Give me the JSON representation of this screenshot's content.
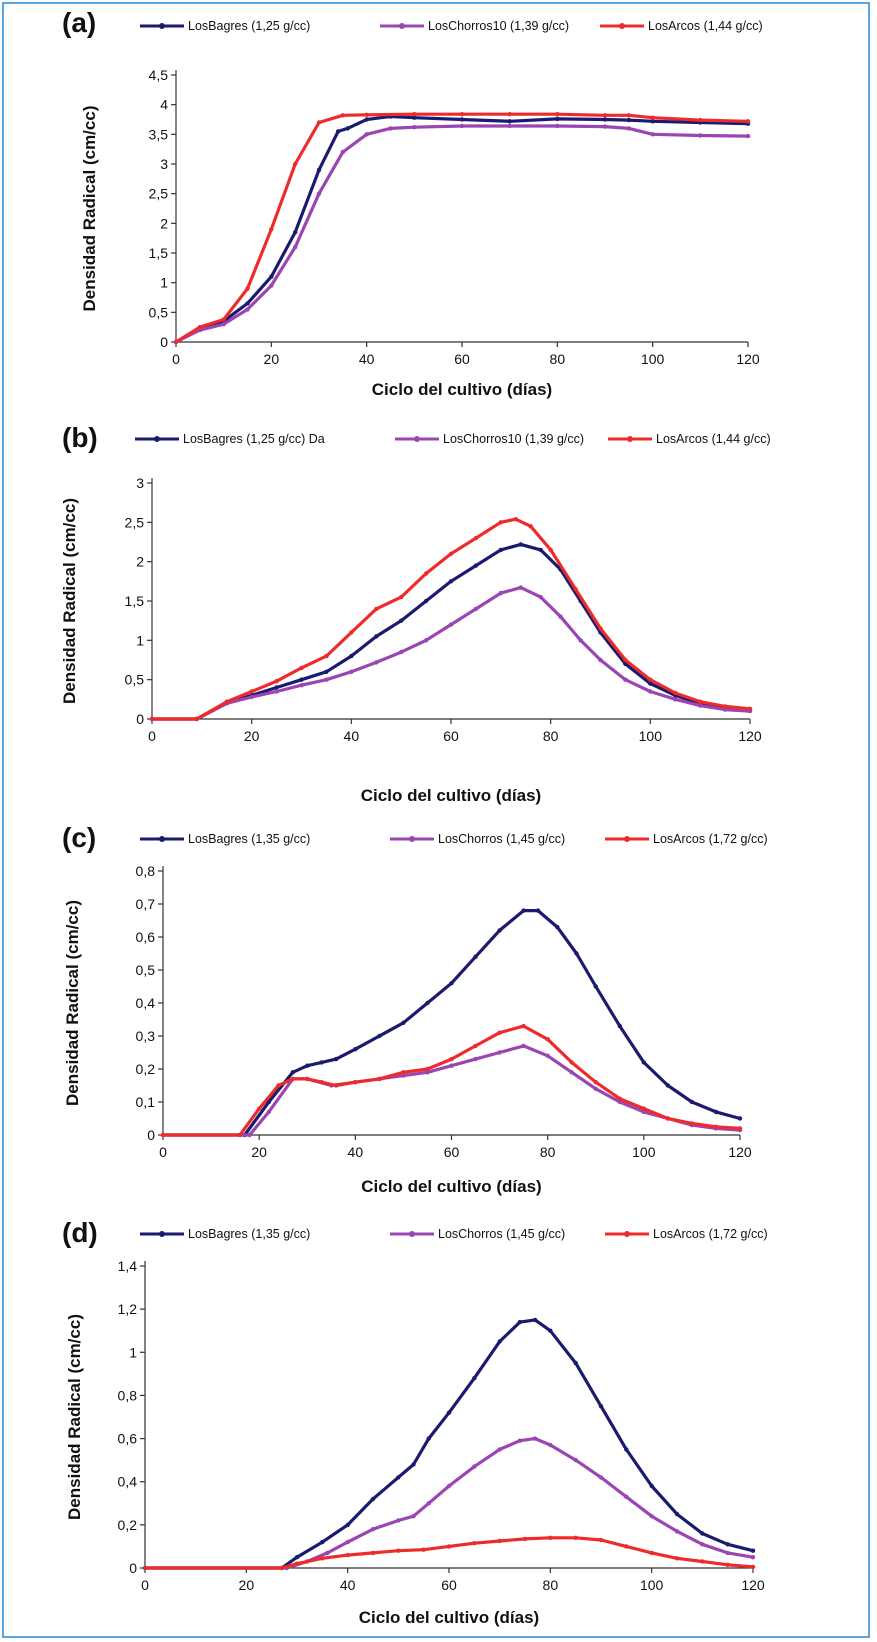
{
  "colors": {
    "navy": "#1a1a6e",
    "purple": "#9b45b5",
    "red": "#ee2b2b",
    "frame": "#5aa6e0"
  },
  "chart_data": [
    {
      "panel": "(a)",
      "type": "line",
      "xlabel": "Ciclo del cultivo (días)",
      "ylabel": "Densidad Radical (cm/cc)",
      "xlim": [
        0,
        120
      ],
      "ylim": [
        0,
        4.5
      ],
      "xticks": [
        "0",
        "20",
        "40",
        "60",
        "80",
        "100",
        "120"
      ],
      "yticks": [
        "0",
        "0,5",
        "1",
        "1,5",
        "2",
        "2,5",
        "3",
        "3,5",
        "4",
        "4,5"
      ],
      "series": [
        {
          "name": "LosBagres (1,25 g/cc)",
          "color": "#1a1a6e",
          "x": [
            0,
            5,
            10,
            15,
            20,
            25,
            30,
            34,
            36,
            40,
            45,
            50,
            60,
            70,
            80,
            90,
            95,
            100,
            110,
            120
          ],
          "y": [
            0,
            0.22,
            0.35,
            0.65,
            1.1,
            1.85,
            2.9,
            3.55,
            3.6,
            3.75,
            3.8,
            3.78,
            3.75,
            3.72,
            3.76,
            3.75,
            3.74,
            3.72,
            3.7,
            3.68
          ]
        },
        {
          "name": "LosChorros10 (1,39 g/cc)",
          "color": "#9b45b5",
          "x": [
            0,
            5,
            10,
            15,
            20,
            25,
            30,
            35,
            40,
            45,
            50,
            60,
            70,
            80,
            90,
            95,
            100,
            110,
            120
          ],
          "y": [
            0,
            0.2,
            0.3,
            0.55,
            0.95,
            1.6,
            2.5,
            3.2,
            3.5,
            3.6,
            3.62,
            3.64,
            3.64,
            3.64,
            3.63,
            3.6,
            3.5,
            3.48,
            3.47
          ]
        },
        {
          "name": "LosArcos (1,44 g/cc)",
          "color": "#ee2b2b",
          "x": [
            0,
            5,
            10,
            15,
            20,
            25,
            30,
            35,
            40,
            50,
            60,
            70,
            80,
            90,
            95,
            100,
            110,
            120
          ],
          "y": [
            0,
            0.25,
            0.38,
            0.9,
            1.9,
            3.0,
            3.7,
            3.82,
            3.83,
            3.84,
            3.84,
            3.84,
            3.84,
            3.82,
            3.82,
            3.78,
            3.74,
            3.72
          ]
        }
      ]
    },
    {
      "panel": "(b)",
      "type": "line",
      "xlabel": "Ciclo del cultivo (días)",
      "ylabel": "Densidad Radical (cm/cc)",
      "xlim": [
        0,
        120
      ],
      "ylim": [
        0,
        3
      ],
      "xticks": [
        "0",
        "20",
        "40",
        "60",
        "80",
        "100",
        "120"
      ],
      "yticks": [
        "0",
        "0,5",
        "1",
        "1,5",
        "2",
        "2,5",
        "3"
      ],
      "series": [
        {
          "name": "LosBagres (1,25 g/cc) Da",
          "color": "#1a1a6e",
          "x": [
            0,
            9,
            15,
            20,
            25,
            30,
            35,
            40,
            45,
            50,
            55,
            60,
            65,
            70,
            74,
            78,
            82,
            86,
            90,
            95,
            100,
            105,
            110,
            115,
            120
          ],
          "y": [
            0,
            0,
            0.2,
            0.3,
            0.4,
            0.5,
            0.6,
            0.8,
            1.05,
            1.25,
            1.5,
            1.75,
            1.95,
            2.15,
            2.22,
            2.15,
            1.9,
            1.5,
            1.1,
            0.7,
            0.45,
            0.3,
            0.2,
            0.15,
            0.12
          ]
        },
        {
          "name": "LosChorros10 (1,39 g/cc)",
          "color": "#9b45b5",
          "x": [
            0,
            9,
            15,
            20,
            25,
            30,
            35,
            40,
            45,
            50,
            55,
            60,
            65,
            70,
            74,
            78,
            82,
            86,
            90,
            95,
            100,
            105,
            110,
            115,
            120
          ],
          "y": [
            0,
            0,
            0.2,
            0.28,
            0.35,
            0.43,
            0.5,
            0.6,
            0.72,
            0.85,
            1.0,
            1.2,
            1.4,
            1.6,
            1.67,
            1.55,
            1.3,
            1.0,
            0.75,
            0.5,
            0.35,
            0.25,
            0.17,
            0.12,
            0.1
          ]
        },
        {
          "name": "LosArcos (1,44 g/cc)",
          "color": "#ee2b2b",
          "x": [
            0,
            9,
            15,
            20,
            25,
            30,
            35,
            40,
            45,
            50,
            55,
            60,
            65,
            70,
            73,
            76,
            80,
            85,
            90,
            95,
            100,
            105,
            110,
            115,
            120
          ],
          "y": [
            0,
            0,
            0.22,
            0.35,
            0.48,
            0.65,
            0.8,
            1.1,
            1.4,
            1.55,
            1.85,
            2.1,
            2.3,
            2.5,
            2.54,
            2.45,
            2.15,
            1.65,
            1.15,
            0.75,
            0.5,
            0.33,
            0.22,
            0.16,
            0.13
          ]
        }
      ]
    },
    {
      "panel": "(c)",
      "type": "line",
      "xlabel": "Ciclo del cultivo (días)",
      "ylabel": "Densidad Radical (cm/cc)",
      "xlim": [
        0,
        120
      ],
      "ylim": [
        0,
        0.8
      ],
      "xticks": [
        "0",
        "20",
        "40",
        "60",
        "80",
        "100",
        "120"
      ],
      "yticks": [
        "0",
        "0,1",
        "0,2",
        "0,3",
        "0,4",
        "0,5",
        "0,6",
        "0,7",
        "0,8"
      ],
      "series": [
        {
          "name": "LosBagres (1,35 g/cc)",
          "color": "#1a1a6e",
          "x": [
            0,
            17,
            22,
            27,
            30,
            33,
            36,
            40,
            45,
            50,
            55,
            60,
            65,
            70,
            75,
            78,
            82,
            86,
            90,
            95,
            100,
            105,
            110,
            115,
            120
          ],
          "y": [
            0,
            0,
            0.1,
            0.19,
            0.21,
            0.22,
            0.23,
            0.26,
            0.3,
            0.34,
            0.4,
            0.46,
            0.54,
            0.62,
            0.68,
            0.68,
            0.63,
            0.55,
            0.45,
            0.33,
            0.22,
            0.15,
            0.1,
            0.07,
            0.05
          ]
        },
        {
          "name": "LosChorros (1,45 g/cc)",
          "color": "#9b45b5",
          "x": [
            0,
            18,
            22,
            27,
            30,
            35,
            40,
            45,
            50,
            55,
            60,
            65,
            70,
            75,
            80,
            85,
            90,
            95,
            100,
            105,
            110,
            115,
            120
          ],
          "y": [
            0,
            0,
            0.07,
            0.17,
            0.17,
            0.15,
            0.16,
            0.17,
            0.18,
            0.19,
            0.21,
            0.23,
            0.25,
            0.27,
            0.24,
            0.19,
            0.14,
            0.1,
            0.07,
            0.05,
            0.03,
            0.02,
            0.015
          ]
        },
        {
          "name": "LosArcos (1,72 g/cc)",
          "color": "#ee2b2b",
          "x": [
            0,
            16,
            20,
            24,
            27,
            30,
            33,
            36,
            40,
            45,
            50,
            55,
            60,
            65,
            70,
            75,
            80,
            85,
            90,
            95,
            100,
            105,
            110,
            115,
            120
          ],
          "y": [
            0,
            0,
            0.08,
            0.15,
            0.17,
            0.17,
            0.16,
            0.15,
            0.16,
            0.17,
            0.19,
            0.2,
            0.23,
            0.27,
            0.31,
            0.33,
            0.29,
            0.22,
            0.16,
            0.11,
            0.08,
            0.05,
            0.035,
            0.025,
            0.02
          ]
        }
      ]
    },
    {
      "panel": "(d)",
      "type": "line",
      "xlabel": "Ciclo del cultivo (días)",
      "ylabel": "Densidad Radical (cm/cc)",
      "xlim": [
        0,
        120
      ],
      "ylim": [
        0,
        1.4
      ],
      "xticks": [
        "0",
        "20",
        "40",
        "60",
        "80",
        "100",
        "120"
      ],
      "yticks": [
        "0",
        "0,2",
        "0,4",
        "0,6",
        "0,8",
        "1",
        "1,2",
        "1,4"
      ],
      "series": [
        {
          "name": "LosBagres (1,35 g/cc)",
          "color": "#1a1a6e",
          "x": [
            0,
            27,
            30,
            35,
            40,
            45,
            50,
            53,
            56,
            60,
            65,
            70,
            74,
            77,
            80,
            85,
            90,
            95,
            100,
            105,
            110,
            115,
            120
          ],
          "y": [
            0,
            0,
            0.05,
            0.12,
            0.2,
            0.32,
            0.42,
            0.48,
            0.6,
            0.72,
            0.88,
            1.05,
            1.14,
            1.15,
            1.1,
            0.95,
            0.75,
            0.55,
            0.38,
            0.25,
            0.16,
            0.11,
            0.08
          ]
        },
        {
          "name": "LosChorros (1,45 g/cc)",
          "color": "#9b45b5",
          "x": [
            0,
            28,
            32,
            36,
            40,
            45,
            50,
            53,
            56,
            60,
            65,
            70,
            74,
            77,
            80,
            85,
            90,
            95,
            100,
            105,
            110,
            115,
            120
          ],
          "y": [
            0,
            0,
            0.03,
            0.07,
            0.12,
            0.18,
            0.22,
            0.24,
            0.3,
            0.38,
            0.47,
            0.55,
            0.59,
            0.6,
            0.57,
            0.5,
            0.42,
            0.33,
            0.24,
            0.17,
            0.11,
            0.07,
            0.05
          ]
        },
        {
          "name": "LosArcos (1,72 g/cc)",
          "color": "#ee2b2b",
          "x": [
            0,
            27,
            30,
            35,
            40,
            45,
            50,
            55,
            60,
            65,
            70,
            75,
            80,
            85,
            90,
            95,
            100,
            105,
            110,
            115,
            120
          ],
          "y": [
            0,
            0,
            0.02,
            0.045,
            0.06,
            0.07,
            0.08,
            0.085,
            0.1,
            0.115,
            0.125,
            0.135,
            0.14,
            0.14,
            0.13,
            0.1,
            0.07,
            0.045,
            0.03,
            0.015,
            0.005
          ]
        }
      ]
    }
  ]
}
